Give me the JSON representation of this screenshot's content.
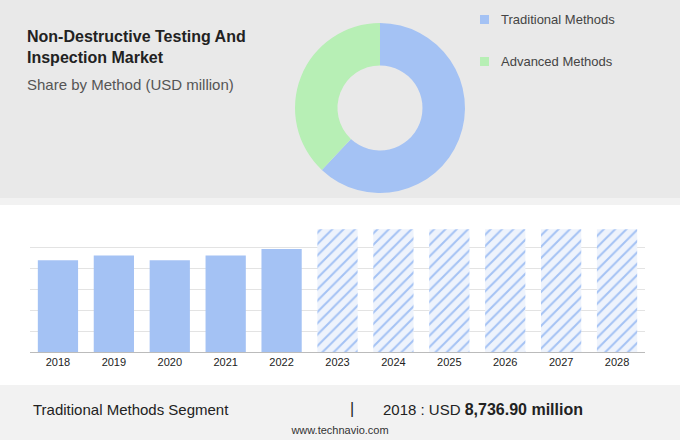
{
  "header": {
    "title": "Non-Destructive Testing And Inspection Market",
    "subtitle": "Share by Method (USD million)"
  },
  "chart_data": [
    {
      "type": "pie",
      "categories": [
        "Traditional Methods",
        "Advanced Methods"
      ],
      "values": [
        62,
        38
      ],
      "colors": [
        "#a4c2f4",
        "#b7efb5"
      ],
      "legend": "right",
      "tick_labels": false
    },
    {
      "type": "bar",
      "categories": [
        "2018",
        "2019",
        "2020",
        "2021",
        "2022",
        "2023",
        "2024",
        "2025",
        "2026",
        "2027",
        "2028"
      ],
      "series": [
        {
          "color": "#a4c2f4",
          "values": [
            8736.9,
            9200,
            8750,
            9200,
            9800,
            null,
            null,
            null,
            null,
            null,
            null
          ]
        },
        {
          "color": "#a4c2f4",
          "marker": "hatched",
          "values": [
            null,
            null,
            null,
            null,
            null,
            11700,
            11700,
            11700,
            11700,
            11700,
            11700
          ]
        }
      ],
      "ylim": [
        0,
        12000
      ],
      "yticks": [
        0,
        2000,
        4000,
        6000,
        8000,
        10000,
        12000
      ],
      "grid": true,
      "tick_labels": "x"
    }
  ],
  "footer": {
    "segment": "Traditional Methods Segment",
    "separator": "|",
    "label": "2018 : USD",
    "value": "8,736.90 million",
    "url": "www.technavio.com"
  }
}
